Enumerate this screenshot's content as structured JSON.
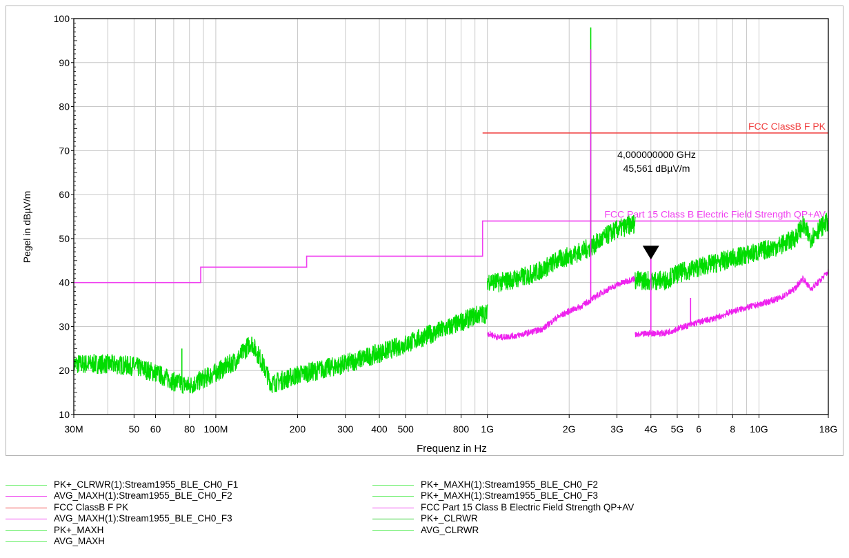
{
  "chart_data": {
    "type": "line",
    "xlabel": "Frequenz in Hz",
    "ylabel": "Pegel in dBµV/m",
    "x_scale": "log",
    "xlim": [
      30000000,
      18000000000
    ],
    "ylim": [
      10,
      100
    ],
    "grid": true,
    "y_ticks": [
      10,
      20,
      30,
      40,
      50,
      60,
      70,
      80,
      90,
      100
    ],
    "x_ticks": [
      {
        "value": 30000000,
        "label": "30M"
      },
      {
        "value": 50000000,
        "label": "50"
      },
      {
        "value": 60000000,
        "label": "60"
      },
      {
        "value": 80000000,
        "label": "80"
      },
      {
        "value": 100000000,
        "label": "100M"
      },
      {
        "value": 200000000,
        "label": "200"
      },
      {
        "value": 300000000,
        "label": "300"
      },
      {
        "value": 400000000,
        "label": "400"
      },
      {
        "value": 500000000,
        "label": "500"
      },
      {
        "value": 800000000,
        "label": "800"
      },
      {
        "value": 1000000000,
        "label": "1G"
      },
      {
        "value": 2000000000,
        "label": "2G"
      },
      {
        "value": 3000000000,
        "label": "3G"
      },
      {
        "value": 4000000000,
        "label": "4G"
      },
      {
        "value": 5000000000,
        "label": "5G"
      },
      {
        "value": 6000000000,
        "label": "6"
      },
      {
        "value": 8000000000,
        "label": "8"
      },
      {
        "value": 10000000000,
        "label": "10G"
      },
      {
        "value": 18000000000,
        "label": "18G"
      }
    ],
    "limit_lines": [
      {
        "name": "FCC ClassB F PK",
        "color": "#f04040",
        "points": [
          [
            960000000,
            74
          ],
          [
            18000000000,
            74
          ]
        ]
      },
      {
        "name": "FCC Part 15 Class B Electric Field Strength QP+AV",
        "color": "#f040f0",
        "points": [
          [
            30000000,
            40
          ],
          [
            88000000,
            40
          ],
          [
            88000000,
            43.5
          ],
          [
            216000000,
            43.5
          ],
          [
            216000000,
            46
          ],
          [
            960000000,
            46
          ],
          [
            960000000,
            54
          ],
          [
            18000000000,
            54
          ]
        ]
      }
    ],
    "series": [
      {
        "name": "PK+_CLRWR(1):Stream1955_BLE_CH0_F1",
        "color": "#00dd00",
        "points": [
          [
            30000000,
            21.5
          ],
          [
            40000000,
            21.5
          ],
          [
            50000000,
            21
          ],
          [
            60000000,
            19.5
          ],
          [
            70000000,
            17.5
          ],
          [
            80000000,
            16.5
          ],
          [
            100000000,
            19.5
          ],
          [
            120000000,
            22.5
          ],
          [
            135000000,
            26.5
          ],
          [
            145000000,
            23
          ],
          [
            160000000,
            17
          ],
          [
            180000000,
            18
          ],
          [
            200000000,
            19
          ],
          [
            300000000,
            21.5
          ],
          [
            400000000,
            24
          ],
          [
            500000000,
            26
          ],
          [
            600000000,
            28
          ],
          [
            700000000,
            29.5
          ],
          [
            800000000,
            31
          ],
          [
            900000000,
            32.5
          ],
          [
            1000000000,
            33
          ]
        ],
        "spikes": [
          [
            75000000,
            25
          ]
        ]
      },
      {
        "name": "PK+_MAXH(1):Stream1955_BLE_CH0_F2",
        "color": "#00dd00",
        "points": [
          [
            1000000000,
            40.5
          ],
          [
            1100000000,
            40
          ],
          [
            1200000000,
            40.5
          ],
          [
            1400000000,
            41.5
          ],
          [
            1600000000,
            43
          ],
          [
            1800000000,
            45
          ],
          [
            2000000000,
            46
          ],
          [
            2200000000,
            47
          ],
          [
            2400000000,
            48
          ],
          [
            2600000000,
            49.5
          ],
          [
            2800000000,
            51
          ],
          [
            3000000000,
            52
          ],
          [
            3500000000,
            53.5
          ]
        ],
        "spikes": [
          [
            2402000000,
            98
          ]
        ]
      },
      {
        "name": "AVG_MAXH(1):Stream1955_BLE_CH0_F2",
        "color": "#ee22ee",
        "points": [
          [
            1000000000,
            28.5
          ],
          [
            1100000000,
            27.5
          ],
          [
            1300000000,
            28
          ],
          [
            1500000000,
            29
          ],
          [
            1600000000,
            29.5
          ],
          [
            1800000000,
            32
          ],
          [
            2000000000,
            33.5
          ],
          [
            2200000000,
            34.5
          ],
          [
            2400000000,
            36
          ],
          [
            2600000000,
            37.5
          ],
          [
            2800000000,
            38.5
          ],
          [
            3000000000,
            39.5
          ],
          [
            3500000000,
            41
          ]
        ],
        "spikes": [
          [
            2402000000,
            93
          ]
        ]
      },
      {
        "name": "PK+_MAXH(1):Stream1955_BLE_CH0_F3",
        "color": "#00dd00",
        "points": [
          [
            3500000000,
            40.5
          ],
          [
            4000000000,
            40.5
          ],
          [
            4500000000,
            40.5
          ],
          [
            5000000000,
            42
          ],
          [
            6000000000,
            43.5
          ],
          [
            7000000000,
            44.5
          ],
          [
            8000000000,
            45.5
          ],
          [
            10000000000,
            47
          ],
          [
            12000000000,
            48.5
          ],
          [
            13500000000,
            50
          ],
          [
            14500000000,
            53
          ],
          [
            15500000000,
            50
          ],
          [
            16500000000,
            52
          ],
          [
            18000000000,
            54
          ]
        ]
      },
      {
        "name": "AVG_MAXH(1):Stream1955_BLE_CH0_F3",
        "color": "#ee22ee",
        "points": [
          [
            3500000000,
            28
          ],
          [
            4000000000,
            28.5
          ],
          [
            4500000000,
            28.5
          ],
          [
            5000000000,
            29.5
          ],
          [
            6000000000,
            31
          ],
          [
            7000000000,
            32
          ],
          [
            8000000000,
            33.5
          ],
          [
            10000000000,
            35
          ],
          [
            12000000000,
            36.5
          ],
          [
            13500000000,
            38.5
          ],
          [
            14500000000,
            41
          ],
          [
            15500000000,
            38.5
          ],
          [
            16500000000,
            40
          ],
          [
            18000000000,
            42.5
          ]
        ],
        "spikes": [
          [
            4000000000,
            45.5
          ],
          [
            5600000000,
            36.5
          ]
        ]
      }
    ],
    "marker": {
      "x": 4000000000,
      "y": 45.561,
      "label_freq": "4,000000000 GHz",
      "label_level": "45,561 dBµV/m"
    },
    "legend": [
      {
        "label": "PK+_CLRWR(1):Stream1955_BLE_CH0_F1",
        "color": "#66ee66",
        "col": 0
      },
      {
        "label": "AVG_MAXH(1):Stream1955_BLE_CH0_F2",
        "color": "#ee44ee",
        "col": 0
      },
      {
        "label": "FCC ClassB F PK",
        "color": "#f04040",
        "col": 0
      },
      {
        "label": "AVG_MAXH(1):Stream1955_BLE_CH0_F3",
        "color": "#ee44ee",
        "col": 0
      },
      {
        "label": "PK+_MAXH",
        "color": "#66ee66",
        "col": 0
      },
      {
        "label": "AVG_MAXH",
        "color": "#66ee66",
        "col": 0
      },
      {
        "label": "PK+_MAXH(1):Stream1955_BLE_CH0_F2",
        "color": "#66ee66",
        "col": 1
      },
      {
        "label": "PK+_MAXH(1):Stream1955_BLE_CH0_F3",
        "color": "#66ee66",
        "col": 1
      },
      {
        "label": "FCC Part 15 Class B Electric Field Strength QP+AV",
        "color": "#ee44ee",
        "col": 1
      },
      {
        "label": "PK+_CLRWR",
        "color": "#22cc22",
        "col": 1
      },
      {
        "label": "AVG_CLRWR",
        "color": "#66ee66",
        "col": 1
      }
    ]
  }
}
